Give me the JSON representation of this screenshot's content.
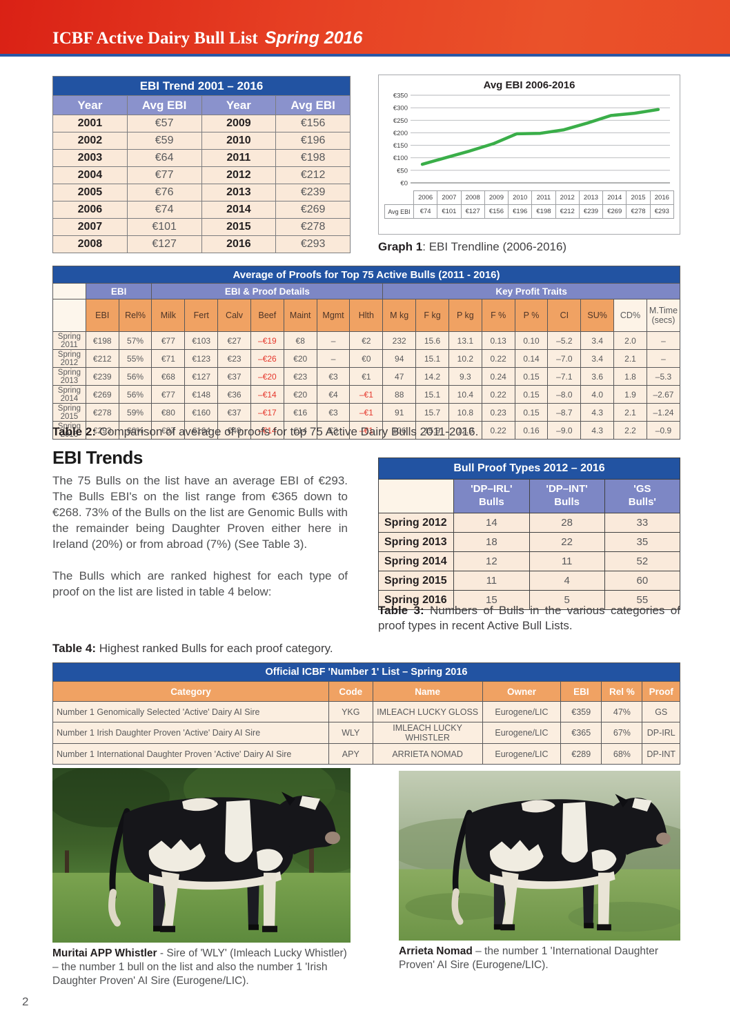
{
  "page_number": "2",
  "header": {
    "title": "ICBF Active Dairy Bull List",
    "edition": "Spring 2016"
  },
  "ebi_trend": {
    "title": "EBI Trend 2001 – 2016",
    "columns": [
      "Year",
      "Avg EBI",
      "Year",
      "Avg EBI"
    ],
    "rows": [
      [
        "2001",
        "€57",
        "2009",
        "€156"
      ],
      [
        "2002",
        "€59",
        "2010",
        "€196"
      ],
      [
        "2003",
        "€64",
        "2011",
        "€198"
      ],
      [
        "2004",
        "€77",
        "2012",
        "€212"
      ],
      [
        "2005",
        "€76",
        "2013",
        "€239"
      ],
      [
        "2006",
        "€74",
        "2014",
        "€269"
      ],
      [
        "2007",
        "€101",
        "2015",
        "€278"
      ],
      [
        "2008",
        "€127",
        "2016",
        "€293"
      ]
    ]
  },
  "chart_data": {
    "type": "line",
    "title": "Avg EBI 2006-2016",
    "x": [
      2006,
      2007,
      2008,
      2009,
      2010,
      2011,
      2012,
      2013,
      2014,
      2015,
      2016
    ],
    "series": [
      {
        "name": "Avg EBI",
        "values": [
          74,
          101,
          127,
          156,
          196,
          198,
          212,
          239,
          269,
          278,
          293
        ]
      }
    ],
    "value_labels": [
      "€74",
      "€101",
      "€127",
      "€156",
      "€196",
      "€198",
      "€212",
      "€239",
      "€269",
      "€278",
      "€293"
    ],
    "ylim": [
      0,
      350
    ],
    "ytick_step": 50,
    "ytick_labels": [
      "€0",
      "€50",
      "€100",
      "€150",
      "€200",
      "€250",
      "€300",
      "€350"
    ],
    "grid": true,
    "line_color": "#3aae49",
    "legend_position": "table-left"
  },
  "graph_caption": {
    "label": "Graph 1",
    "text": ": EBI Trendline (2006-2016)"
  },
  "proofs_table": {
    "title": "Average of Proofs for Top 75 Active Bulls (2011 - 2016)",
    "groups": [
      {
        "label": "",
        "span": 1
      },
      {
        "label": "EBI",
        "span": 2
      },
      {
        "label": "EBI & Proof Details",
        "span": 7
      },
      {
        "label": "Key Profit Traits",
        "span": 9
      }
    ],
    "columns": [
      "EBI",
      "Rel%",
      "Milk",
      "Fert",
      "Calv",
      "Beef",
      "Maint",
      "Mgmt",
      "Hlth",
      "M kg",
      "F kg",
      "P kg",
      "F %",
      "P %",
      "CI",
      "SU%",
      "CD%",
      "M.Time\n(secs)"
    ],
    "plain_column_indices": [
      16,
      17
    ],
    "rows": [
      {
        "label": "Spring 2011",
        "values": [
          "€198",
          "57%",
          "€77",
          "€103",
          "€27",
          "–€19",
          "€8",
          "–",
          "€2",
          "232",
          "15.6",
          "13.1",
          "0.13",
          "0.10",
          "–5.2",
          "3.4",
          "2.0",
          "–"
        ]
      },
      {
        "label": "Spring 2012",
        "values": [
          "€212",
          "55%",
          "€71",
          "€123",
          "€23",
          "–€26",
          "€20",
          "–",
          "€0",
          "94",
          "15.1",
          "10.2",
          "0.22",
          "0.14",
          "–7.0",
          "3.4",
          "2.1",
          "–"
        ]
      },
      {
        "label": "Spring 2013",
        "values": [
          "€239",
          "56%",
          "€68",
          "€127",
          "€37",
          "–€20",
          "€23",
          "€3",
          "€1",
          "47",
          "14.2",
          "9.3",
          "0.24",
          "0.15",
          "–7.1",
          "3.6",
          "1.8",
          "–5.3"
        ]
      },
      {
        "label": "Spring 2014",
        "values": [
          "€269",
          "56%",
          "€77",
          "€148",
          "€36",
          "–€14",
          "€20",
          "€4",
          "–€1",
          "88",
          "15.1",
          "10.4",
          "0.22",
          "0.15",
          "–8.0",
          "4.0",
          "1.9",
          "–2.67"
        ]
      },
      {
        "label": "Spring 2015",
        "values": [
          "€278",
          "59%",
          "€80",
          "€160",
          "€37",
          "–€17",
          "€16",
          "€3",
          "–€1",
          "91",
          "15.7",
          "10.8",
          "0.23",
          "0.15",
          "–8.7",
          "4.3",
          "2.1",
          "–1.24"
        ]
      },
      {
        "label": "Spring 2016",
        "values": [
          "€293",
          "60%",
          "€87",
          "€164",
          "€40",
          "–€14",
          "€14",
          "€3",
          "–€1",
          "106",
          "15.9",
          "12.0",
          "0.22",
          "0.16",
          "–9.0",
          "4.3",
          "2.2",
          "–0.9"
        ]
      }
    ],
    "caption": {
      "label": "Table 2:",
      "text": " Comparison of average of proofs for top 75 Active Dairy Bulls 2011-2016."
    }
  },
  "ebi_trends_section": {
    "heading": "EBI Trends",
    "paragraph1": "The 75 Bulls on the list have an average EBI of €293. The Bulls EBI's on the list range from €365 down to €268. 73% of the Bulls on the list are Genomic Bulls with the remainder being Daughter Proven either here in Ireland (20%) or from abroad (7%) (See Table 3).",
    "paragraph2": "The Bulls which are ranked highest for each type of proof on the list are listed in table 4 below:"
  },
  "bull_proof_types": {
    "title": "Bull Proof Types 2012 – 2016",
    "columns": [
      "'DP–IRL'\nBulls",
      "'DP–INT'\nBulls",
      "'GS\nBulls'"
    ],
    "rows": [
      {
        "label": "Spring 2012",
        "values": [
          "14",
          "28",
          "33"
        ]
      },
      {
        "label": "Spring 2013",
        "values": [
          "18",
          "22",
          "35"
        ]
      },
      {
        "label": "Spring 2014",
        "values": [
          "12",
          "11",
          "52"
        ]
      },
      {
        "label": "Spring 2015",
        "values": [
          "11",
          "4",
          "60"
        ]
      },
      {
        "label": "Spring 2016",
        "values": [
          "15",
          "5",
          "55"
        ]
      }
    ],
    "caption": {
      "label": "Table 3:",
      "text": " Numbers of Bulls in the various categories of proof types in recent Active Bull Lists."
    }
  },
  "number1_caption": {
    "label": "Table 4:",
    "text": " Highest ranked Bulls for each proof category."
  },
  "number1_table": {
    "title": "Official ICBF 'Number 1' List – Spring 2016",
    "columns": [
      "Category",
      "Code",
      "Name",
      "Owner",
      "EBI",
      "Rel %",
      "Proof"
    ],
    "rows": [
      [
        "Number 1 Genomically Selected 'Active' Dairy AI Sire",
        "YKG",
        "IMLEACH LUCKY GLOSS",
        "Eurogene/LIC",
        "€359",
        "47%",
        "GS"
      ],
      [
        "Number 1 Irish Daughter Proven 'Active' Dairy AI Sire",
        "WLY",
        "IMLEACH LUCKY WHISTLER",
        "Eurogene/LIC",
        "€365",
        "67%",
        "DP-IRL"
      ],
      [
        "Number 1 International Daughter Proven 'Active' Dairy AI Sire",
        "APY",
        "ARRIETA NOMAD",
        "Eurogene/LIC",
        "€289",
        "68%",
        "DP-INT"
      ]
    ]
  },
  "photos": {
    "left": {
      "caption_bold": "Muritai APP Whistler",
      "caption_text": " - Sire of 'WLY' (Imleach Lucky Whistler) – the number 1 bull on the list and also the number 1 'Irish Daughter Proven' AI Sire (Eurogene/LIC)."
    },
    "right": {
      "caption_bold": "Arrieta Nomad",
      "caption_text": " – the number 1 'International Daughter Proven' AI Sire (Eurogene/LIC)."
    }
  },
  "colors": {
    "banner_red": "#e63f23",
    "title_bar_blue": "#2253a2",
    "group_header_blue": "#7d87c5",
    "column_header_orange": "#f0a263",
    "row_cream": "#fbeee0",
    "negative_red": "#e5372c",
    "trend_line_green": "#3aae49"
  }
}
